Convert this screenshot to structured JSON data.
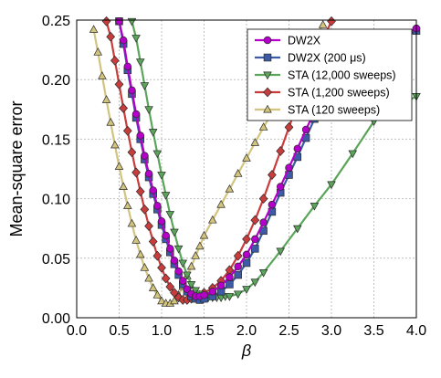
{
  "chart_data": {
    "type": "line",
    "xlabel": "β",
    "ylabel": "Mean-square error",
    "xlim": [
      0.0,
      4.0
    ],
    "ylim": [
      0.0,
      0.25
    ],
    "xticks": [
      "0.0",
      "0.5",
      "1.0",
      "1.5",
      "2.0",
      "2.5",
      "3.0",
      "3.5",
      "4.0"
    ],
    "yticks": [
      "0.00",
      "0.05",
      "0.10",
      "0.15",
      "0.20",
      "0.25"
    ],
    "grid": true,
    "legend_position": "top-right",
    "series": [
      {
        "name": "DW2X",
        "color": "#b400c8",
        "marker": "circle",
        "points": [
          [
            0.5,
            0.249
          ],
          [
            0.55,
            0.233
          ],
          [
            0.6,
            0.211
          ],
          [
            0.65,
            0.191
          ],
          [
            0.7,
            0.171
          ],
          [
            0.75,
            0.153
          ],
          [
            0.8,
            0.136
          ],
          [
            0.85,
            0.121
          ],
          [
            0.9,
            0.107
          ],
          [
            0.95,
            0.094
          ],
          [
            1.0,
            0.081
          ],
          [
            1.05,
            0.069
          ],
          [
            1.1,
            0.058
          ],
          [
            1.15,
            0.048
          ],
          [
            1.2,
            0.039
          ],
          [
            1.25,
            0.031
          ],
          [
            1.3,
            0.024
          ],
          [
            1.35,
            0.02
          ],
          [
            1.4,
            0.018
          ],
          [
            1.45,
            0.018
          ],
          [
            1.5,
            0.019
          ],
          [
            1.6,
            0.022
          ],
          [
            1.7,
            0.027
          ],
          [
            1.8,
            0.034
          ],
          [
            1.9,
            0.043
          ],
          [
            2.0,
            0.053
          ],
          [
            2.1,
            0.066
          ],
          [
            2.2,
            0.08
          ],
          [
            2.3,
            0.095
          ],
          [
            2.4,
            0.11
          ],
          [
            2.5,
            0.126
          ],
          [
            2.6,
            0.142
          ],
          [
            2.7,
            0.158
          ],
          [
            2.8,
            0.173
          ],
          [
            3.0,
            0.195
          ],
          [
            3.5,
            0.225
          ],
          [
            4.0,
            0.243
          ]
        ]
      },
      {
        "name": "DW2X (200 μs)",
        "color": "#3c5aa5",
        "marker": "square",
        "points": [
          [
            0.5,
            0.249
          ],
          [
            0.55,
            0.23
          ],
          [
            0.6,
            0.208
          ],
          [
            0.65,
            0.188
          ],
          [
            0.7,
            0.168
          ],
          [
            0.75,
            0.15
          ],
          [
            0.8,
            0.133
          ],
          [
            0.85,
            0.118
          ],
          [
            0.9,
            0.104
          ],
          [
            0.95,
            0.091
          ],
          [
            1.0,
            0.078
          ],
          [
            1.05,
            0.066
          ],
          [
            1.1,
            0.055
          ],
          [
            1.15,
            0.045
          ],
          [
            1.2,
            0.036
          ],
          [
            1.25,
            0.028
          ],
          [
            1.3,
            0.022
          ],
          [
            1.35,
            0.018
          ],
          [
            1.4,
            0.016
          ],
          [
            1.45,
            0.015
          ],
          [
            1.5,
            0.016
          ],
          [
            1.6,
            0.018
          ],
          [
            1.7,
            0.022
          ],
          [
            1.8,
            0.028
          ],
          [
            1.9,
            0.036
          ],
          [
            2.0,
            0.046
          ],
          [
            2.1,
            0.058
          ],
          [
            2.2,
            0.073
          ],
          [
            2.3,
            0.089
          ],
          [
            2.4,
            0.105
          ],
          [
            2.5,
            0.12
          ],
          [
            2.6,
            0.135
          ],
          [
            2.7,
            0.151
          ],
          [
            2.8,
            0.167
          ],
          [
            3.0,
            0.19
          ],
          [
            3.5,
            0.222
          ],
          [
            4.0,
            0.241
          ]
        ]
      },
      {
        "name": "STA (12,000 sweeps)",
        "color": "#5aa55a",
        "marker": "triangle-down",
        "points": [
          [
            0.65,
            0.249
          ],
          [
            0.7,
            0.235
          ],
          [
            0.75,
            0.215
          ],
          [
            0.8,
            0.195
          ],
          [
            0.85,
            0.175
          ],
          [
            0.9,
            0.156
          ],
          [
            0.95,
            0.138
          ],
          [
            1.0,
            0.12
          ],
          [
            1.05,
            0.103
          ],
          [
            1.1,
            0.087
          ],
          [
            1.15,
            0.072
          ],
          [
            1.2,
            0.058
          ],
          [
            1.25,
            0.046
          ],
          [
            1.3,
            0.036
          ],
          [
            1.35,
            0.028
          ],
          [
            1.4,
            0.023
          ],
          [
            1.45,
            0.02
          ],
          [
            1.5,
            0.018
          ],
          [
            1.55,
            0.017
          ],
          [
            1.6,
            0.017
          ],
          [
            1.65,
            0.017
          ],
          [
            1.7,
            0.017
          ],
          [
            1.75,
            0.018
          ],
          [
            1.8,
            0.018
          ],
          [
            1.9,
            0.02
          ],
          [
            2.0,
            0.024
          ],
          [
            2.1,
            0.03
          ],
          [
            2.2,
            0.038
          ],
          [
            2.4,
            0.056
          ],
          [
            2.6,
            0.075
          ],
          [
            2.8,
            0.094
          ],
          [
            3.0,
            0.112
          ],
          [
            3.25,
            0.138
          ],
          [
            3.5,
            0.165
          ],
          [
            3.75,
            0.176
          ],
          [
            4.0,
            0.186
          ]
        ]
      },
      {
        "name": "STA (1,200 sweeps)",
        "color": "#c83c3c",
        "marker": "diamond",
        "points": [
          [
            0.35,
            0.249
          ],
          [
            0.4,
            0.236
          ],
          [
            0.45,
            0.216
          ],
          [
            0.5,
            0.196
          ],
          [
            0.55,
            0.176
          ],
          [
            0.6,
            0.157
          ],
          [
            0.65,
            0.139
          ],
          [
            0.7,
            0.122
          ],
          [
            0.75,
            0.106
          ],
          [
            0.8,
            0.091
          ],
          [
            0.85,
            0.077
          ],
          [
            0.9,
            0.064
          ],
          [
            0.95,
            0.052
          ],
          [
            1.0,
            0.042
          ],
          [
            1.05,
            0.033
          ],
          [
            1.1,
            0.026
          ],
          [
            1.15,
            0.021
          ],
          [
            1.2,
            0.017
          ],
          [
            1.25,
            0.015
          ],
          [
            1.3,
            0.015
          ],
          [
            1.35,
            0.016
          ],
          [
            1.4,
            0.017
          ],
          [
            1.45,
            0.019
          ],
          [
            1.5,
            0.021
          ],
          [
            1.6,
            0.025
          ],
          [
            1.7,
            0.031
          ],
          [
            1.8,
            0.04
          ],
          [
            1.9,
            0.052
          ],
          [
            2.0,
            0.066
          ],
          [
            2.1,
            0.082
          ],
          [
            2.2,
            0.1
          ],
          [
            2.3,
            0.12
          ],
          [
            2.4,
            0.14
          ],
          [
            2.5,
            0.16
          ],
          [
            2.6,
            0.18
          ],
          [
            2.7,
            0.199
          ],
          [
            2.8,
            0.218
          ],
          [
            2.9,
            0.234
          ],
          [
            3.0,
            0.249
          ]
        ]
      },
      {
        "name": "STA (120 sweeps)",
        "color": "#d2c37d",
        "marker": "triangle-up",
        "points": [
          [
            0.2,
            0.242
          ],
          [
            0.25,
            0.223
          ],
          [
            0.3,
            0.203
          ],
          [
            0.35,
            0.183
          ],
          [
            0.4,
            0.164
          ],
          [
            0.45,
            0.145
          ],
          [
            0.5,
            0.127
          ],
          [
            0.55,
            0.11
          ],
          [
            0.6,
            0.094
          ],
          [
            0.65,
            0.079
          ],
          [
            0.7,
            0.065
          ],
          [
            0.75,
            0.053
          ],
          [
            0.8,
            0.042
          ],
          [
            0.85,
            0.033
          ],
          [
            0.9,
            0.025
          ],
          [
            0.95,
            0.019
          ],
          [
            1.0,
            0.014
          ],
          [
            1.05,
            0.012
          ],
          [
            1.1,
            0.012
          ],
          [
            1.15,
            0.014
          ],
          [
            1.2,
            0.019
          ],
          [
            1.25,
            0.026
          ],
          [
            1.3,
            0.035
          ],
          [
            1.35,
            0.043
          ],
          [
            1.4,
            0.052
          ],
          [
            1.45,
            0.06
          ],
          [
            1.5,
            0.069
          ],
          [
            1.6,
            0.082
          ],
          [
            1.7,
            0.095
          ],
          [
            1.8,
            0.108
          ],
          [
            1.9,
            0.121
          ],
          [
            2.0,
            0.134
          ],
          [
            2.1,
            0.147
          ],
          [
            2.2,
            0.16
          ],
          [
            2.3,
            0.172
          ],
          [
            2.4,
            0.185
          ],
          [
            2.5,
            0.197
          ],
          [
            2.6,
            0.209
          ],
          [
            2.7,
            0.222
          ],
          [
            2.8,
            0.234
          ],
          [
            2.9,
            0.246
          ]
        ]
      }
    ]
  }
}
